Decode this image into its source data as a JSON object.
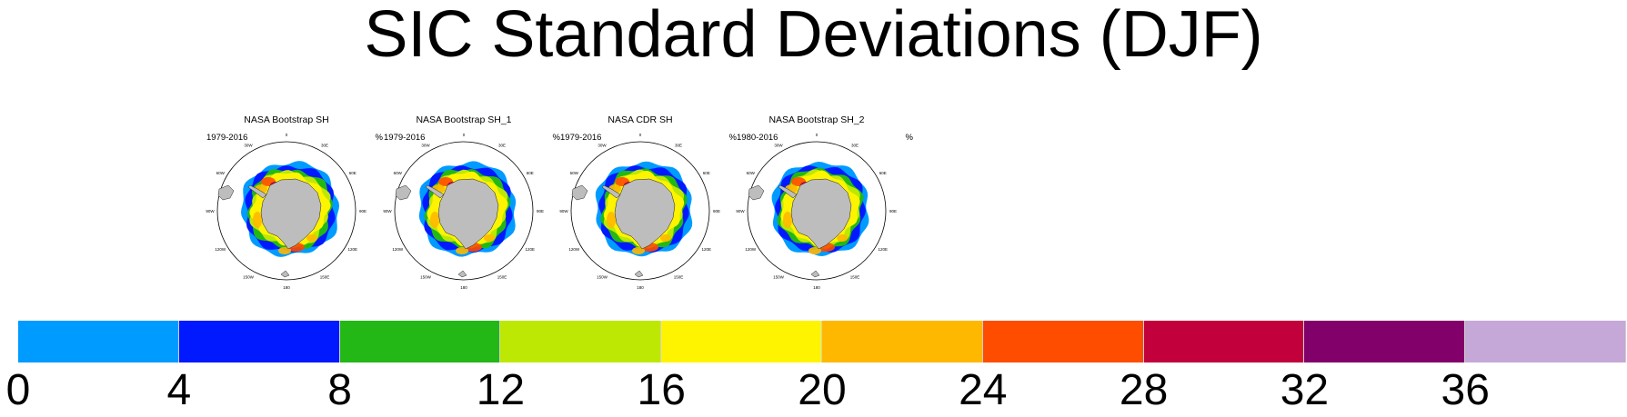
{
  "title": "SIC Standard Deviations (DJF)",
  "panels": [
    {
      "title": "NASA Bootstrap SH",
      "period": "1979-2016",
      "unit": "%"
    },
    {
      "title": "NASA Bootstrap SH_1",
      "period": "1979-2016",
      "unit": "%"
    },
    {
      "title": "NASA CDR SH",
      "period": "1979-2016",
      "unit": "%"
    },
    {
      "title": "NASA Bootstrap SH_2",
      "period": "1980-2016",
      "unit": "%"
    }
  ],
  "longitude_labels": [
    "0",
    "30E",
    "60E",
    "90E",
    "120E",
    "150E",
    "180",
    "150W",
    "120W",
    "90W",
    "60W",
    "30W"
  ],
  "colorbar": {
    "ticks": [
      "0",
      "4",
      "8",
      "12",
      "16",
      "20",
      "24",
      "28",
      "32",
      "36"
    ],
    "colors": [
      "#009bff",
      "#0019ff",
      "#23b815",
      "#bce804",
      "#fff400",
      "#ffb800",
      "#ff4d00",
      "#c2003c",
      "#82006a",
      "#c5a8d8"
    ]
  },
  "colors": {
    "land": "#bdbdbd",
    "ice_edge_low": "#009bff",
    "ice_edge_mid": "#0019ff"
  }
}
